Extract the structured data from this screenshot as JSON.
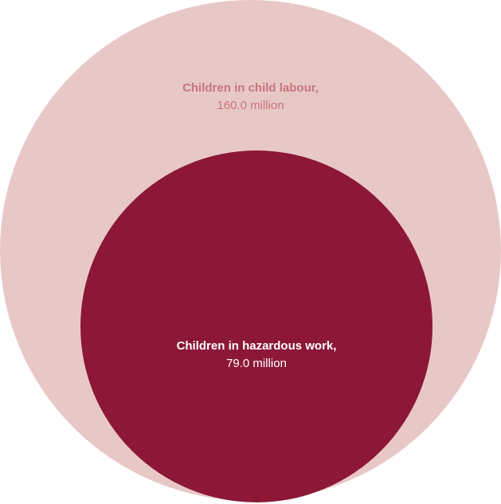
{
  "chart_data": {
    "type": "nested-circles",
    "title": "",
    "series": [
      {
        "name": "Children in child labour,",
        "value_label": "160.0 million",
        "value": 160.0,
        "color": "#e8c8c6"
      },
      {
        "name": "Children in hazardous work,",
        "value_label": "79.0 million",
        "value": 79.0,
        "color": "#8c1736"
      }
    ],
    "label_colors": {
      "outer": "#c7767f",
      "inner": "#ffffff"
    }
  }
}
